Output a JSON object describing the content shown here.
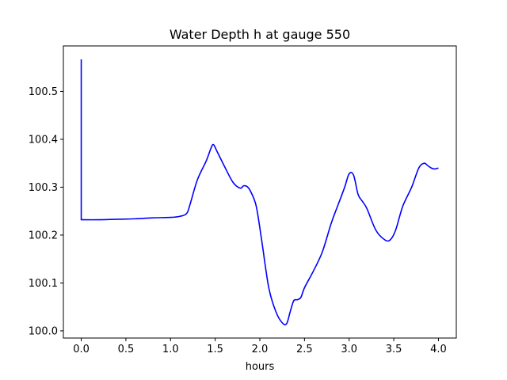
{
  "chart_data": {
    "type": "line",
    "title": "Water Depth h at gauge 550",
    "xlabel": "hours",
    "ylabel": "",
    "xlim": [
      -0.2,
      4.2
    ],
    "ylim": [
      99.985,
      100.595
    ],
    "xticks": [
      0.0,
      0.5,
      1.0,
      1.5,
      2.0,
      2.5,
      3.0,
      3.5,
      4.0
    ],
    "xtick_labels": [
      "0.0",
      "0.5",
      "1.0",
      "1.5",
      "2.0",
      "2.5",
      "3.0",
      "3.5",
      "4.0"
    ],
    "yticks": [
      100.0,
      100.1,
      100.2,
      100.3,
      100.4,
      100.5
    ],
    "ytick_labels": [
      "100.0",
      "100.1",
      "100.2",
      "100.3",
      "100.4",
      "100.5"
    ],
    "grid": false,
    "series": [
      {
        "color": "#0000ff",
        "x": [
          0.0,
          0.0,
          0.0,
          0.2,
          0.4,
          0.6,
          0.8,
          1.0,
          1.1,
          1.18,
          1.22,
          1.3,
          1.4,
          1.45,
          1.48,
          1.52,
          1.6,
          1.7,
          1.78,
          1.82,
          1.86,
          1.9,
          1.96,
          2.02,
          2.1,
          2.18,
          2.25,
          2.3,
          2.34,
          2.38,
          2.42,
          2.46,
          2.5,
          2.6,
          2.7,
          2.8,
          2.88,
          2.95,
          3.0,
          3.05,
          3.1,
          3.15,
          3.2,
          3.3,
          3.4,
          3.46,
          3.52,
          3.6,
          3.7,
          3.78,
          3.84,
          3.88,
          3.92,
          3.96,
          4.0
        ],
        "y": [
          100.567,
          100.232,
          100.232,
          100.232,
          100.233,
          100.234,
          100.236,
          100.237,
          100.239,
          100.245,
          100.265,
          100.315,
          100.355,
          100.38,
          100.389,
          100.375,
          100.345,
          100.31,
          100.298,
          100.303,
          100.301,
          100.29,
          100.26,
          100.19,
          100.09,
          100.04,
          100.017,
          100.015,
          100.04,
          100.063,
          100.065,
          100.07,
          100.09,
          100.125,
          100.165,
          100.225,
          100.265,
          100.3,
          100.328,
          100.325,
          100.285,
          100.27,
          100.255,
          100.21,
          100.19,
          100.19,
          100.21,
          100.26,
          100.3,
          100.34,
          100.35,
          100.345,
          100.34,
          100.338,
          100.34
        ]
      }
    ]
  }
}
